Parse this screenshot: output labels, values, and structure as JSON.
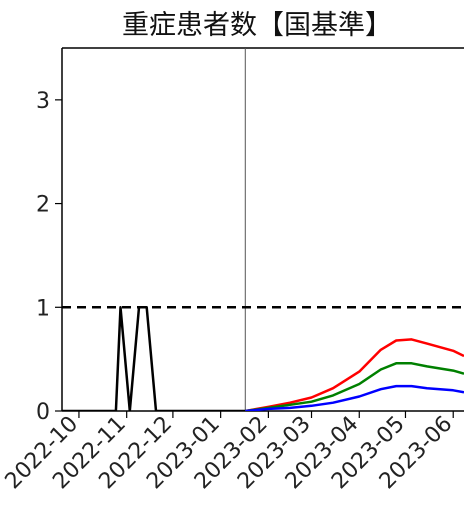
{
  "chart_data": {
    "type": "line",
    "title": "重症患者数【国基準】",
    "xlabel": "",
    "ylabel": "",
    "x_tick_labels": [
      "2022-10",
      "2022-11",
      "2022-12",
      "2023-01",
      "2023-02",
      "2023-03",
      "2023-04",
      "2023-05",
      "2023-06"
    ],
    "x_ticks": [
      "2022-10-01",
      "2022-11-01",
      "2022-12-01",
      "2023-01-01",
      "2023-02-01",
      "2023-03-01",
      "2023-04-01",
      "2023-05-01",
      "2023-06-01"
    ],
    "xlim": [
      "2022-09-20",
      "2023-06-08"
    ],
    "ylim": [
      0,
      3.5
    ],
    "y_ticks": [
      0,
      1,
      2,
      3
    ],
    "reference_line": {
      "y": 1,
      "style": "dashed",
      "color": "#000000"
    },
    "vertical_marker": {
      "x": "2023-01-17",
      "color": "#555555"
    },
    "grid": false,
    "series": [
      {
        "color": "#000000",
        "style": "solid",
        "points": [
          [
            "2022-09-20",
            0
          ],
          [
            "2022-10-25",
            0
          ],
          [
            "2022-10-28",
            1
          ],
          [
            "2022-11-03",
            0
          ],
          [
            "2022-11-09",
            1
          ],
          [
            "2022-11-14",
            1
          ],
          [
            "2022-11-20",
            0
          ],
          [
            "2023-01-17",
            0
          ]
        ]
      },
      {
        "color": "#ff0000",
        "style": "solid",
        "points": [
          [
            "2023-01-17",
            0
          ],
          [
            "2023-02-01",
            0.04
          ],
          [
            "2023-02-15",
            0.08
          ],
          [
            "2023-03-01",
            0.13
          ],
          [
            "2023-03-15",
            0.22
          ],
          [
            "2023-04-01",
            0.38
          ],
          [
            "2023-04-15",
            0.59
          ],
          [
            "2023-04-25",
            0.68
          ],
          [
            "2023-05-05",
            0.69
          ],
          [
            "2023-05-15",
            0.65
          ],
          [
            "2023-06-01",
            0.58
          ],
          [
            "2023-06-08",
            0.53
          ]
        ]
      },
      {
        "color": "#008000",
        "style": "solid",
        "points": [
          [
            "2023-01-17",
            0
          ],
          [
            "2023-02-01",
            0.03
          ],
          [
            "2023-02-15",
            0.06
          ],
          [
            "2023-03-01",
            0.09
          ],
          [
            "2023-03-15",
            0.15
          ],
          [
            "2023-04-01",
            0.26
          ],
          [
            "2023-04-15",
            0.4
          ],
          [
            "2023-04-25",
            0.46
          ],
          [
            "2023-05-05",
            0.46
          ],
          [
            "2023-05-15",
            0.43
          ],
          [
            "2023-06-01",
            0.39
          ],
          [
            "2023-06-08",
            0.36
          ]
        ]
      },
      {
        "color": "#0000ff",
        "style": "solid",
        "points": [
          [
            "2023-01-17",
            0
          ],
          [
            "2023-02-01",
            0.02
          ],
          [
            "2023-02-15",
            0.03
          ],
          [
            "2023-03-01",
            0.05
          ],
          [
            "2023-03-15",
            0.08
          ],
          [
            "2023-04-01",
            0.14
          ],
          [
            "2023-04-15",
            0.21
          ],
          [
            "2023-04-25",
            0.24
          ],
          [
            "2023-05-05",
            0.24
          ],
          [
            "2023-05-15",
            0.22
          ],
          [
            "2023-06-01",
            0.2
          ],
          [
            "2023-06-08",
            0.18
          ]
        ]
      }
    ]
  }
}
